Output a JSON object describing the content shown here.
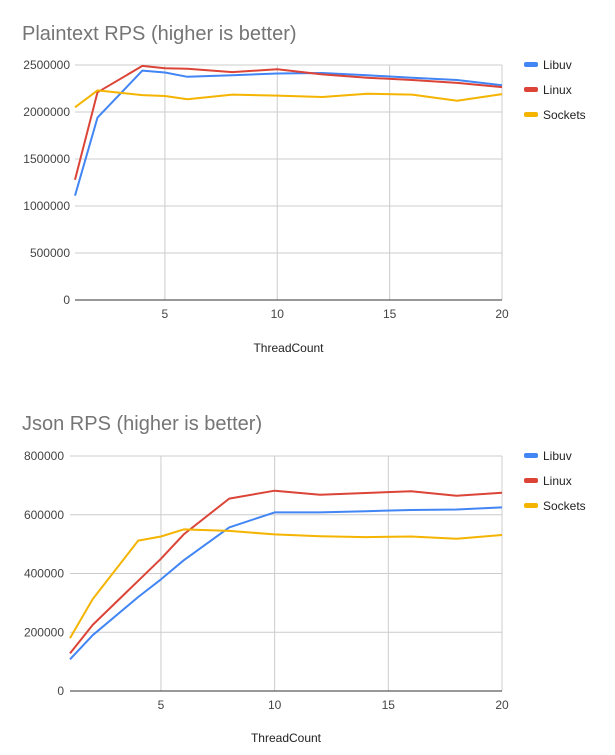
{
  "chart_data": [
    {
      "type": "line",
      "title": "Plaintext RPS (higher is better)",
      "xlabel": "ThreadCount",
      "ylabel": "",
      "xlim": [
        1,
        20
      ],
      "ylim": [
        0,
        2500000
      ],
      "xticks": [
        5,
        10,
        15,
        20
      ],
      "yticks": [
        0,
        500000,
        1000000,
        1500000,
        2000000,
        2500000
      ],
      "grid": true,
      "legend_position": "right",
      "x": [
        1,
        2,
        4,
        5,
        6,
        8,
        10,
        12,
        14,
        16,
        18,
        20
      ],
      "series": [
        {
          "name": "Libuv",
          "color": "#4285F4",
          "values": [
            1110000,
            1940000,
            2440000,
            2420000,
            2375000,
            2390000,
            2410000,
            2415000,
            2390000,
            2365000,
            2340000,
            2285000
          ]
        },
        {
          "name": "Linux",
          "color": "#DB4437",
          "values": [
            1280000,
            2210000,
            2490000,
            2465000,
            2460000,
            2425000,
            2455000,
            2400000,
            2365000,
            2340000,
            2310000,
            2265000
          ]
        },
        {
          "name": "Sockets",
          "color": "#F4B400",
          "values": [
            2050000,
            2230000,
            2180000,
            2170000,
            2135000,
            2185000,
            2175000,
            2160000,
            2195000,
            2185000,
            2120000,
            2190000
          ]
        }
      ]
    },
    {
      "type": "line",
      "title": "Json RPS (higher is better)",
      "xlabel": "ThreadCount",
      "ylabel": "",
      "xlim": [
        1,
        20
      ],
      "ylim": [
        0,
        800000
      ],
      "xticks": [
        5,
        10,
        15,
        20
      ],
      "yticks": [
        0,
        200000,
        400000,
        600000,
        800000
      ],
      "grid": true,
      "legend_position": "right",
      "x": [
        1,
        2,
        4,
        5,
        6,
        8,
        10,
        12,
        14,
        16,
        18,
        20
      ],
      "series": [
        {
          "name": "Libuv",
          "color": "#4285F4",
          "values": [
            108000,
            190000,
            320000,
            380000,
            445000,
            557000,
            608000,
            608000,
            612000,
            616000,
            618000,
            625000
          ]
        },
        {
          "name": "Linux",
          "color": "#DB4437",
          "values": [
            128000,
            225000,
            375000,
            450000,
            533000,
            655000,
            682000,
            668000,
            674000,
            680000,
            665000,
            675000
          ]
        },
        {
          "name": "Sockets",
          "color": "#F4B400",
          "values": [
            180000,
            313000,
            512000,
            526000,
            550000,
            545000,
            533000,
            527000,
            524000,
            526000,
            518000,
            531000
          ]
        }
      ]
    }
  ]
}
